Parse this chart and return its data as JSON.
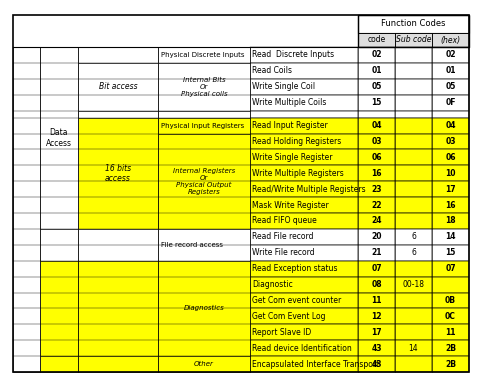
{
  "col_headers": [
    "code",
    "Sub code",
    "(hex)"
  ],
  "rows": [
    {
      "c0": "Data\nAccess",
      "c1": "Bit access",
      "c2": "Physical Discrete Inputs",
      "c3": "Read  Discrete Inputs",
      "code": "02",
      "sub": "",
      "hex": "02",
      "bg": "w"
    },
    {
      "c0": "",
      "c1": "Bit access",
      "c2": "Internal Bits\nOr\nPhysical coils",
      "c3": "Read Coils",
      "code": "01",
      "sub": "",
      "hex": "01",
      "bg": "w"
    },
    {
      "c0": "",
      "c1": "Bit access",
      "c2": "",
      "c3": "Write Single Coil",
      "code": "05",
      "sub": "",
      "hex": "05",
      "bg": "w"
    },
    {
      "c0": "",
      "c1": "Bit access",
      "c2": "",
      "c3": "Write Multiple Coils",
      "code": "15",
      "sub": "",
      "hex": "0F",
      "bg": "w"
    },
    {
      "c0": "",
      "c1": "",
      "c2": "",
      "c3": "",
      "code": "",
      "sub": "",
      "hex": "",
      "bg": "w"
    },
    {
      "c0": "",
      "c1": "16 bits\naccess",
      "c2": "Physical Input Registers",
      "c3": "Read Input Register",
      "code": "04",
      "sub": "",
      "hex": "04",
      "bg": "y"
    },
    {
      "c0": "",
      "c1": "16 bits\naccess",
      "c2": "Internal Registers\nOr\nPhysical Output\nRegisters",
      "c3": "Read Holding Registers",
      "code": "03",
      "sub": "",
      "hex": "03",
      "bg": "y"
    },
    {
      "c0": "",
      "c1": "16 bits\naccess",
      "c2": "",
      "c3": "Write Single Register",
      "code": "06",
      "sub": "",
      "hex": "06",
      "bg": "y"
    },
    {
      "c0": "",
      "c1": "16 bits\naccess",
      "c2": "",
      "c3": "Write Multiple Registers",
      "code": "16",
      "sub": "",
      "hex": "10",
      "bg": "y"
    },
    {
      "c0": "",
      "c1": "16 bits\naccess",
      "c2": "",
      "c3": "Read/Write Multiple Registers",
      "code": "23",
      "sub": "",
      "hex": "17",
      "bg": "y"
    },
    {
      "c0": "",
      "c1": "16 bits\naccess",
      "c2": "",
      "c3": "Mask Write Register",
      "code": "22",
      "sub": "",
      "hex": "16",
      "bg": "y"
    },
    {
      "c0": "",
      "c1": "16 bits\naccess",
      "c2": "",
      "c3": "Read FIFO queue",
      "code": "24",
      "sub": "",
      "hex": "18",
      "bg": "y"
    },
    {
      "c0": "",
      "c1": "",
      "c2": "File record access",
      "c3": "Read File record",
      "code": "20",
      "sub": "6",
      "hex": "14",
      "bg": "w"
    },
    {
      "c0": "",
      "c1": "",
      "c2": "",
      "c3": "Write File record",
      "code": "21",
      "sub": "6",
      "hex": "15",
      "bg": "w"
    },
    {
      "c0": "",
      "c1": "",
      "c2": "Diagnostics",
      "c3": "Read Exception status",
      "code": "07",
      "sub": "",
      "hex": "07",
      "bg": "y"
    },
    {
      "c0": "",
      "c1": "",
      "c2": "",
      "c3": "Diagnostic",
      "code": "08",
      "sub": "00-18",
      "hex": "",
      "bg": "y"
    },
    {
      "c0": "",
      "c1": "",
      "c2": "",
      "c3": "Get Com event counter",
      "code": "11",
      "sub": "",
      "hex": "0B",
      "bg": "y"
    },
    {
      "c0": "",
      "c1": "",
      "c2": "",
      "c3": "Get Com Event Log",
      "code": "12",
      "sub": "",
      "hex": "0C",
      "bg": "y"
    },
    {
      "c0": "",
      "c1": "",
      "c2": "",
      "c3": "Report Slave ID",
      "code": "17",
      "sub": "",
      "hex": "11",
      "bg": "y"
    },
    {
      "c0": "",
      "c1": "",
      "c2": "",
      "c3": "Read device Identification",
      "code": "43",
      "sub": "14",
      "hex": "2B",
      "bg": "y"
    },
    {
      "c0": "",
      "c1": "",
      "c2": "Other",
      "c3": "Encapsulated Interface Transport",
      "code": "43",
      "sub": "",
      "hex": "2B",
      "bg": "y"
    }
  ],
  "yellow": "#FFFF00",
  "white": "#FFFFFF",
  "gray": "#DEDEDE",
  "font_size": 5.5
}
